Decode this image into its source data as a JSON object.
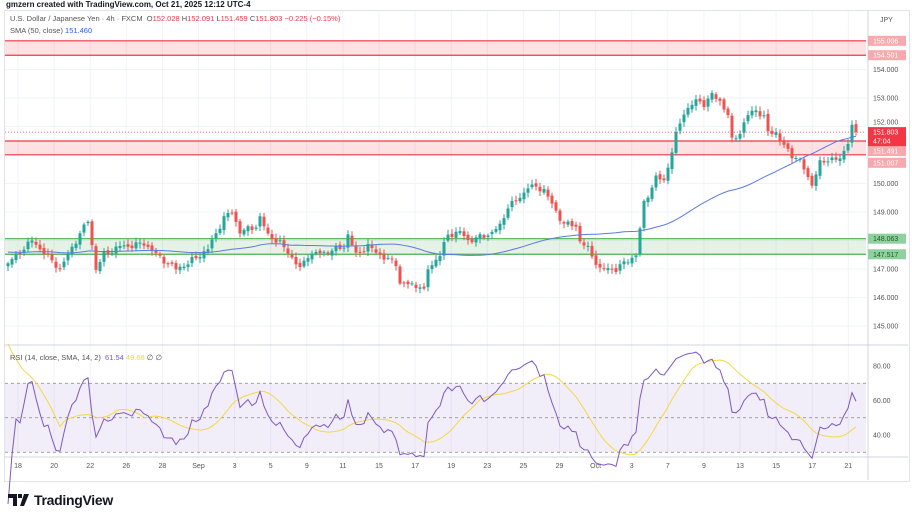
{
  "credit": "gmzern created with TradingView.com, Oct 21, 2025 12:12 UTC-4",
  "legend": {
    "symbol": "U.S. Dollar / Japanese Yen · 4h · FXCM",
    "o_label": "O",
    "o": "152.028",
    "h_label": "H",
    "h": "152.091",
    "l_label": "L",
    "l": "151.459",
    "c_label": "C",
    "c": "151.803",
    "change": "−0.225 (−0.15%)",
    "sma_label": "SMA (50, close)",
    "sma_value": "151.460"
  },
  "rsi_legend": {
    "label": "RSI (14, close, SMA, 14, 2)",
    "rsi": "61.54",
    "ma": "49.68",
    "extra1": "∅",
    "extra2": "∅"
  },
  "currency": "JPY",
  "logo_text": "TradingView",
  "colors": {
    "up": "#26a69a",
    "down": "#ef5350",
    "sma": "#5b7be0",
    "rsi": "#7e57c2",
    "rsi_ma": "#f5d742",
    "resistance": "#f23645",
    "support": "#4caf50"
  },
  "price_axis": [
    "154.000",
    "153.000",
    "152.000",
    "150.000",
    "149.000",
    "147.000",
    "146.000",
    "145.000"
  ],
  "price_axis_values": [
    154,
    153,
    152,
    150,
    149,
    147,
    146,
    145
  ],
  "level_labels": [
    {
      "text": "155.006",
      "value": 155.006,
      "type": "resistance"
    },
    {
      "text": "154.501",
      "value": 154.501,
      "type": "resistance"
    },
    {
      "text": "151.491",
      "value": 151.491,
      "type": "resistance"
    },
    {
      "text": "151.007",
      "value": 151.007,
      "type": "resistance"
    },
    {
      "text": "148.063",
      "value": 148.063,
      "type": "support"
    },
    {
      "text": "147.517",
      "value": 147.517,
      "type": "support"
    }
  ],
  "current_price": {
    "text": "151.803",
    "value": 151.803,
    "countdown": "47:04"
  },
  "rsi_axis": [
    "80.00",
    "60.00",
    "40.00"
  ],
  "rsi_axis_values": [
    80,
    60,
    40
  ],
  "dates": [
    "18",
    "20",
    "22",
    "26",
    "28",
    "Sep",
    "3",
    "5",
    "9",
    "11",
    "15",
    "17",
    "19",
    "23",
    "25",
    "29",
    "Oct",
    "3",
    "7",
    "9",
    "13",
    "15",
    "17",
    "21"
  ],
  "chart_data": {
    "type": "candlestick",
    "title": "U.S. Dollar / Japanese Yen · 4h · FXCM",
    "ylim": [
      144.5,
      155.5
    ],
    "zones": [
      {
        "top": 155.006,
        "bottom": 154.501,
        "type": "resistance"
      },
      {
        "top": 151.491,
        "bottom": 151.007,
        "type": "resistance"
      },
      {
        "top": 148.063,
        "bottom": 147.517,
        "type": "support"
      }
    ],
    "bars": 213,
    "close_anchors": [
      [
        0,
        147.2
      ],
      [
        6,
        148.0
      ],
      [
        13,
        147.0
      ],
      [
        17,
        148.0
      ],
      [
        20,
        148.7
      ],
      [
        22,
        147.0
      ],
      [
        24,
        147.5
      ],
      [
        28,
        147.8
      ],
      [
        30,
        147.8
      ],
      [
        34,
        147.9
      ],
      [
        38,
        147.4
      ],
      [
        42,
        147.0
      ],
      [
        45,
        147.2
      ],
      [
        50,
        147.7
      ],
      [
        54,
        148.8
      ],
      [
        56,
        149.0
      ],
      [
        58,
        148.3
      ],
      [
        62,
        148.5
      ],
      [
        63,
        148.8
      ],
      [
        65,
        148.2
      ],
      [
        68,
        147.9
      ],
      [
        70,
        147.6
      ],
      [
        73,
        147.0
      ],
      [
        75,
        147.5
      ],
      [
        80,
        147.6
      ],
      [
        84,
        147.8
      ],
      [
        85,
        148.2
      ],
      [
        87,
        147.5
      ],
      [
        89,
        147.7
      ],
      [
        90,
        147.8
      ],
      [
        94,
        147.4
      ],
      [
        97,
        147.2
      ],
      [
        98,
        146.5
      ],
      [
        103,
        146.4
      ],
      [
        104,
        146.2
      ],
      [
        105,
        147.0
      ],
      [
        108,
        147.5
      ],
      [
        110,
        148.2
      ],
      [
        113,
        148.3
      ],
      [
        115,
        148.0
      ],
      [
        120,
        148.2
      ],
      [
        123,
        148.5
      ],
      [
        125,
        149.2
      ],
      [
        128,
        149.5
      ],
      [
        130,
        149.9
      ],
      [
        134,
        149.8
      ],
      [
        137,
        149.0
      ],
      [
        139,
        148.6
      ],
      [
        142,
        148.5
      ],
      [
        143,
        148.0
      ],
      [
        145,
        147.7
      ],
      [
        148,
        147.0
      ],
      [
        152,
        147.0
      ],
      [
        154,
        147.2
      ],
      [
        157,
        147.5
      ],
      [
        159,
        149.3
      ],
      [
        162,
        150.2
      ],
      [
        164,
        150.1
      ],
      [
        165,
        150.6
      ],
      [
        167,
        151.7
      ],
      [
        169,
        152.5
      ],
      [
        172,
        152.9
      ],
      [
        174,
        152.8
      ],
      [
        176,
        153.1
      ],
      [
        178,
        152.9
      ],
      [
        180,
        152.4
      ],
      [
        181,
        151.5
      ],
      [
        183,
        151.8
      ],
      [
        185,
        152.4
      ],
      [
        187,
        152.6
      ],
      [
        189,
        152.3
      ],
      [
        190,
        151.8
      ],
      [
        192,
        151.8
      ],
      [
        194,
        151.3
      ],
      [
        196,
        151.0
      ],
      [
        198,
        150.8
      ],
      [
        200,
        150.2
      ],
      [
        201,
        150.0
      ],
      [
        203,
        150.7
      ],
      [
        206,
        150.9
      ],
      [
        208,
        150.8
      ],
      [
        210,
        151.5
      ],
      [
        211,
        152.0
      ],
      [
        212,
        151.803
      ]
    ],
    "sma_period": 50,
    "rsi_period": 14,
    "rsi_ma_period": 14,
    "rsi_levels": [
      70,
      50,
      30
    ]
  }
}
